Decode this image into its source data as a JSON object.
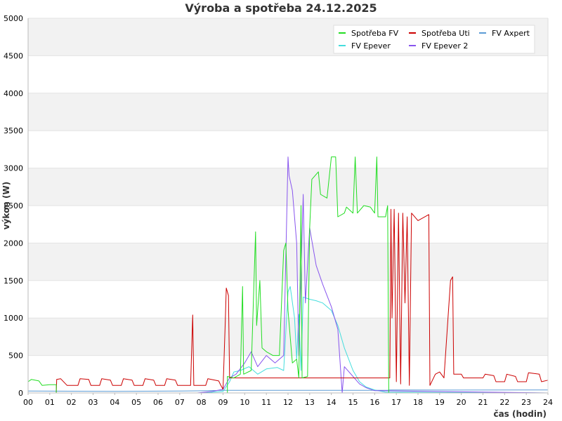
{
  "chart_data": {
    "type": "line",
    "title": "Výroba a spotřeba 24.12.2025",
    "xlabel": "čas (hodin)",
    "ylabel": "výkon (W)",
    "xlim": [
      0,
      24
    ],
    "ylim": [
      0,
      5000
    ],
    "x_ticks": [
      "00",
      "01",
      "02",
      "03",
      "04",
      "05",
      "06",
      "07",
      "08",
      "09",
      "10",
      "11",
      "12",
      "13",
      "14",
      "15",
      "16",
      "17",
      "18",
      "19",
      "20",
      "21",
      "22",
      "23",
      "24"
    ],
    "y_ticks": [
      0,
      500,
      1000,
      1500,
      2000,
      2500,
      3000,
      3500,
      4000,
      4500,
      5000
    ],
    "grid": "horizontal alternating bands",
    "legend_position": "top-right",
    "series": [
      {
        "name": "Spotřeba FV",
        "color": "#22dd22",
        "points": [
          [
            0,
            150
          ],
          [
            0.15,
            180
          ],
          [
            0.5,
            160
          ],
          [
            0.65,
            100
          ],
          [
            1.0,
            110
          ],
          [
            1.3,
            110
          ],
          [
            1.3,
            0
          ],
          [
            1.32,
            0
          ],
          [
            9.2,
            0
          ],
          [
            9.2,
            220
          ],
          [
            9.5,
            200
          ],
          [
            9.8,
            250
          ],
          [
            9.9,
            1420
          ],
          [
            9.95,
            250
          ],
          [
            10.3,
            300
          ],
          [
            10.5,
            2150
          ],
          [
            10.55,
            900
          ],
          [
            10.7,
            1500
          ],
          [
            10.8,
            600
          ],
          [
            11.0,
            550
          ],
          [
            11.3,
            500
          ],
          [
            11.6,
            500
          ],
          [
            11.8,
            1900
          ],
          [
            11.9,
            2000
          ],
          [
            12.0,
            1100
          ],
          [
            12.2,
            400
          ],
          [
            12.4,
            450
          ],
          [
            12.5,
            200
          ],
          [
            12.6,
            2500
          ],
          [
            12.65,
            200
          ],
          [
            12.9,
            220
          ],
          [
            13.0,
            2200
          ],
          [
            13.1,
            2850
          ],
          [
            13.4,
            2950
          ],
          [
            13.5,
            2650
          ],
          [
            13.8,
            2600
          ],
          [
            14.0,
            3150
          ],
          [
            14.2,
            3150
          ],
          [
            14.3,
            2350
          ],
          [
            14.6,
            2400
          ],
          [
            14.7,
            2480
          ],
          [
            15.0,
            2400
          ],
          [
            15.1,
            3150
          ],
          [
            15.2,
            2400
          ],
          [
            15.5,
            2500
          ],
          [
            15.8,
            2480
          ],
          [
            16.0,
            2400
          ],
          [
            16.1,
            3150
          ],
          [
            16.15,
            2350
          ],
          [
            16.5,
            2350
          ],
          [
            16.6,
            2500
          ],
          [
            16.65,
            0
          ],
          [
            16.7,
            0
          ],
          [
            24,
            0
          ]
        ]
      },
      {
        "name": "Spotřeba Uti",
        "color": "#cc0000",
        "points": [
          [
            1.3,
            0
          ],
          [
            1.32,
            180
          ],
          [
            1.5,
            190
          ],
          [
            1.8,
            100
          ],
          [
            2.3,
            100
          ],
          [
            2.4,
            190
          ],
          [
            2.8,
            180
          ],
          [
            2.9,
            100
          ],
          [
            3.3,
            100
          ],
          [
            3.4,
            190
          ],
          [
            3.8,
            170
          ],
          [
            3.9,
            100
          ],
          [
            4.3,
            100
          ],
          [
            4.4,
            190
          ],
          [
            4.8,
            170
          ],
          [
            4.9,
            100
          ],
          [
            5.3,
            100
          ],
          [
            5.4,
            190
          ],
          [
            5.8,
            170
          ],
          [
            5.9,
            100
          ],
          [
            6.3,
            100
          ],
          [
            6.4,
            190
          ],
          [
            6.8,
            170
          ],
          [
            6.9,
            100
          ],
          [
            7.5,
            100
          ],
          [
            7.6,
            1040
          ],
          [
            7.65,
            100
          ],
          [
            8.2,
            100
          ],
          [
            8.3,
            190
          ],
          [
            8.8,
            160
          ],
          [
            8.9,
            100
          ],
          [
            9.0,
            50
          ],
          [
            9.1,
            930
          ],
          [
            9.15,
            1400
          ],
          [
            9.25,
            1300
          ],
          [
            9.3,
            200
          ],
          [
            16.7,
            200
          ],
          [
            16.75,
            2450
          ],
          [
            16.8,
            1000
          ],
          [
            16.9,
            2450
          ],
          [
            17.0,
            150
          ],
          [
            17.1,
            2400
          ],
          [
            17.2,
            120
          ],
          [
            17.3,
            2400
          ],
          [
            17.4,
            1200
          ],
          [
            17.5,
            2350
          ],
          [
            17.6,
            100
          ],
          [
            17.7,
            2400
          ],
          [
            18.0,
            2300
          ],
          [
            18.5,
            2380
          ],
          [
            18.55,
            100
          ],
          [
            18.8,
            250
          ],
          [
            19.0,
            280
          ],
          [
            19.2,
            200
          ],
          [
            19.5,
            1500
          ],
          [
            19.6,
            1550
          ],
          [
            19.65,
            250
          ],
          [
            20.0,
            250
          ],
          [
            20.1,
            200
          ],
          [
            21.0,
            200
          ],
          [
            21.1,
            250
          ],
          [
            21.5,
            230
          ],
          [
            21.6,
            150
          ],
          [
            22.0,
            150
          ],
          [
            22.1,
            250
          ],
          [
            22.5,
            220
          ],
          [
            22.6,
            150
          ],
          [
            23.0,
            150
          ],
          [
            23.1,
            270
          ],
          [
            23.6,
            250
          ],
          [
            23.7,
            150
          ],
          [
            24,
            170
          ]
        ]
      },
      {
        "name": "FV Axpert",
        "color": "#5b9bd5",
        "points": [
          [
            0,
            25
          ],
          [
            4,
            22
          ],
          [
            7,
            25
          ],
          [
            7.8,
            28
          ],
          [
            8.3,
            30
          ],
          [
            9.0,
            35
          ],
          [
            16.6,
            35
          ],
          [
            16.7,
            40
          ],
          [
            20,
            38
          ],
          [
            24,
            40
          ]
        ]
      },
      {
        "name": "FV Epever",
        "color": "#44dddd",
        "points": [
          [
            0,
            0
          ],
          [
            8.0,
            0
          ],
          [
            9.0,
            20
          ],
          [
            9.3,
            150
          ],
          [
            9.5,
            280
          ],
          [
            9.8,
            300
          ],
          [
            10.2,
            350
          ],
          [
            10.6,
            250
          ],
          [
            11.0,
            320
          ],
          [
            11.5,
            340
          ],
          [
            11.8,
            300
          ],
          [
            12.0,
            1350
          ],
          [
            12.1,
            1420
          ],
          [
            12.3,
            1000
          ],
          [
            12.4,
            450
          ],
          [
            12.5,
            1050
          ],
          [
            12.6,
            300
          ],
          [
            12.7,
            1280
          ],
          [
            13.0,
            1250
          ],
          [
            13.3,
            1230
          ],
          [
            13.6,
            1200
          ],
          [
            14.0,
            1100
          ],
          [
            14.3,
            900
          ],
          [
            14.6,
            600
          ],
          [
            15.0,
            300
          ],
          [
            15.3,
            150
          ],
          [
            15.6,
            80
          ],
          [
            16.0,
            40
          ],
          [
            16.5,
            10
          ],
          [
            24,
            0
          ]
        ]
      },
      {
        "name": "FV Epever 2",
        "color": "#8855ee",
        "points": [
          [
            0,
            0
          ],
          [
            7.8,
            0
          ],
          [
            8.5,
            20
          ],
          [
            9.0,
            50
          ],
          [
            9.3,
            200
          ],
          [
            9.6,
            250
          ],
          [
            10.0,
            400
          ],
          [
            10.3,
            550
          ],
          [
            10.6,
            350
          ],
          [
            11.0,
            500
          ],
          [
            11.4,
            400
          ],
          [
            11.8,
            500
          ],
          [
            12.0,
            3150
          ],
          [
            12.05,
            2900
          ],
          [
            12.2,
            2700
          ],
          [
            12.4,
            2000
          ],
          [
            12.5,
            500
          ],
          [
            12.7,
            2650
          ],
          [
            12.8,
            1200
          ],
          [
            13.0,
            2200
          ],
          [
            13.3,
            1700
          ],
          [
            13.6,
            1450
          ],
          [
            14.0,
            1150
          ],
          [
            14.3,
            850
          ],
          [
            14.5,
            0
          ],
          [
            14.6,
            350
          ],
          [
            15.0,
            220
          ],
          [
            15.3,
            120
          ],
          [
            15.6,
            70
          ],
          [
            16.0,
            30
          ],
          [
            24,
            0
          ]
        ]
      }
    ]
  }
}
